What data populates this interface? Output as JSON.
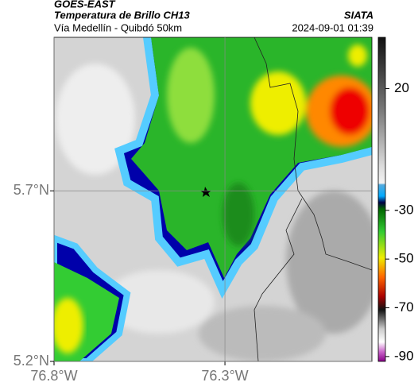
{
  "header": {
    "title": "GOES-EAST",
    "subtitle": "Temperatura de Brillo CH13",
    "source": "SIATA",
    "region": "Vía Medellín - Quibdó 50km",
    "datetime": "2024-09-01 01:39"
  },
  "map": {
    "lonlim": [
      -76.8,
      -75.87
    ],
    "latlim": [
      5.2,
      6.15
    ],
    "lonticks": [
      {
        "value": -76.8,
        "label": "76.8°W"
      },
      {
        "value": -76.3,
        "label": "76.3°W"
      }
    ],
    "latticks": [
      {
        "value": 5.7,
        "label": "5.7°N"
      },
      {
        "value": 5.2,
        "label": "5.2°N"
      }
    ],
    "grid": true
  },
  "colorbar": {
    "clim": [
      41,
      -92
    ],
    "ticks": [
      20,
      -30,
      -50,
      -70,
      -90
    ]
  }
}
